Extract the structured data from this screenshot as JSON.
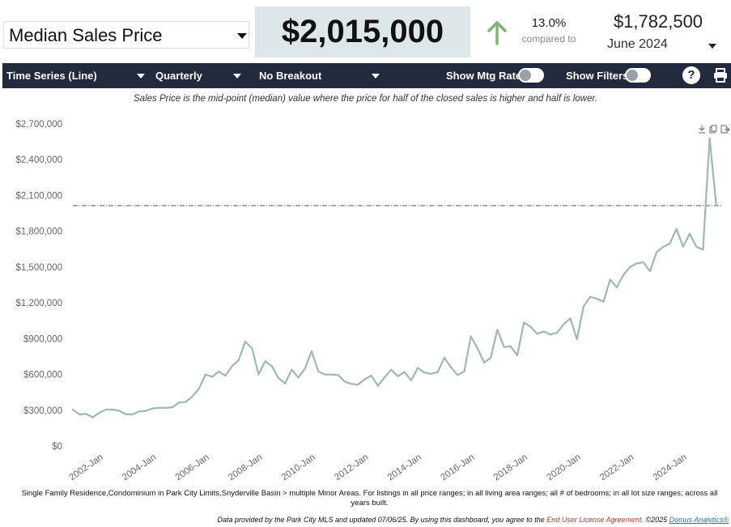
{
  "header": {
    "metric_select": "Median Sales Price",
    "current_value": "$2,015,000",
    "change_pct": "13.0%",
    "compared_label": "compared to",
    "compare_value": "$1,782,500",
    "compare_period": "June 2024",
    "up_color": "#86b07a"
  },
  "toolbar": {
    "chart_type": "Time Series (Line)",
    "interval": "Quarterly",
    "breakout": "No Breakout",
    "mtg_rate_label": "Show Mtg Rate:",
    "filters_label": "Show Filters:",
    "help_label": "?",
    "print_icon": "print-icon"
  },
  "description": "Sales Price is the mid-point (median) value where the price for half of the closed sales is higher and half is lower.",
  "footnote": "Single Family Residence,Condominium in Park City Limits,Snyderville Basin > multiple Minor Areas. For listings in all price ranges; in all living area ranges; all # of bedrooms; in all lot size ranges; across all years built.",
  "credits": {
    "text": "Data provided by the Park City MLS and updated 07/06/25.  By using this dashboard, you agree to the",
    "eula": "End User License Agreement.",
    "copyright": "©2025",
    "brand": "Domus Analytics®"
  },
  "chart_data": {
    "type": "line",
    "line_color": "#9fb8b2",
    "reference_line": 2015000,
    "ylim": [
      0,
      2700000
    ],
    "yticks": [
      0,
      300000,
      600000,
      900000,
      1200000,
      1500000,
      1800000,
      2100000,
      2400000,
      2700000
    ],
    "ytick_labels": [
      "$0",
      "$300,000",
      "$600,000",
      "$900,000",
      "$1,200,000",
      "$1,500,000",
      "$1,800,000",
      "$2,100,000",
      "$2,400,000",
      "$2,700,000"
    ],
    "xtick_labels": [
      "2002-Jan",
      "2004-Jan",
      "2006-Jan",
      "2008-Jan",
      "2010-Jan",
      "2012-Jan",
      "2014-Jan",
      "2016-Jan",
      "2018-Jan",
      "2020-Jan",
      "2022-Jan",
      "2024-Jan"
    ],
    "xlim": [
      "2001-Jan",
      "2025-Jul"
    ],
    "series": [
      {
        "x": [
          "2001-Jan",
          "2001-Apr",
          "2001-Jul",
          "2001-Oct",
          "2002-Jan",
          "2002-Apr",
          "2002-Jul",
          "2002-Oct",
          "2003-Jan",
          "2003-Apr",
          "2003-Jul",
          "2003-Oct",
          "2004-Jan",
          "2004-Apr",
          "2004-Jul",
          "2004-Oct",
          "2005-Jan",
          "2005-Apr",
          "2005-Jul",
          "2005-Oct",
          "2006-Jan",
          "2006-Apr",
          "2006-Jul",
          "2006-Oct",
          "2007-Jan",
          "2007-Apr",
          "2007-Jul",
          "2007-Oct",
          "2008-Jan",
          "2008-Apr",
          "2008-Jul",
          "2008-Oct",
          "2009-Jan",
          "2009-Apr",
          "2009-Jul",
          "2009-Oct",
          "2010-Jan",
          "2010-Apr",
          "2010-Jul",
          "2010-Oct",
          "2011-Jan",
          "2011-Apr",
          "2011-Jul",
          "2011-Oct",
          "2012-Jan",
          "2012-Apr",
          "2012-Jul",
          "2012-Oct",
          "2013-Jan",
          "2013-Apr",
          "2013-Jul",
          "2013-Oct",
          "2014-Jan",
          "2014-Apr",
          "2014-Jul",
          "2014-Oct",
          "2015-Jan",
          "2015-Apr",
          "2015-Jul",
          "2015-Oct",
          "2016-Jan",
          "2016-Apr",
          "2016-Jul",
          "2016-Oct",
          "2017-Jan",
          "2017-Apr",
          "2017-Jul",
          "2017-Oct",
          "2018-Jan",
          "2018-Apr",
          "2018-Jul",
          "2018-Oct",
          "2019-Jan",
          "2019-Apr",
          "2019-Jul",
          "2019-Oct",
          "2020-Jan",
          "2020-Apr",
          "2020-Jul",
          "2020-Oct",
          "2021-Jan",
          "2021-Apr",
          "2021-Jul",
          "2021-Oct",
          "2022-Jan",
          "2022-Apr",
          "2022-Jul",
          "2022-Oct",
          "2023-Jan",
          "2023-Apr",
          "2023-Jul",
          "2023-Oct",
          "2024-Jan",
          "2024-Apr",
          "2024-Jul",
          "2024-Oct",
          "2025-Jan",
          "2025-Apr"
        ],
        "values": [
          305000,
          265000,
          270000,
          240000,
          280000,
          305000,
          305000,
          295000,
          265000,
          265000,
          290000,
          295000,
          315000,
          320000,
          320000,
          325000,
          365000,
          370000,
          415000,
          480000,
          600000,
          580000,
          625000,
          590000,
          670000,
          720000,
          875000,
          820000,
          600000,
          710000,
          670000,
          570000,
          525000,
          640000,
          575000,
          650000,
          795000,
          625000,
          600000,
          600000,
          595000,
          540000,
          520000,
          515000,
          560000,
          590000,
          505000,
          575000,
          640000,
          585000,
          620000,
          550000,
          655000,
          615000,
          605000,
          620000,
          740000,
          660000,
          595000,
          625000,
          920000,
          820000,
          700000,
          740000,
          975000,
          830000,
          835000,
          760000,
          1035000,
          1000000,
          940000,
          960000,
          935000,
          950000,
          1020000,
          1070000,
          895000,
          1170000,
          1250000,
          1235000,
          1210000,
          1395000,
          1330000,
          1435000,
          1500000,
          1530000,
          1540000,
          1465000,
          1625000,
          1670000,
          1695000,
          1820000,
          1670000,
          1780000,
          1670000,
          1645000,
          2580000,
          2015000
        ]
      }
    ]
  }
}
